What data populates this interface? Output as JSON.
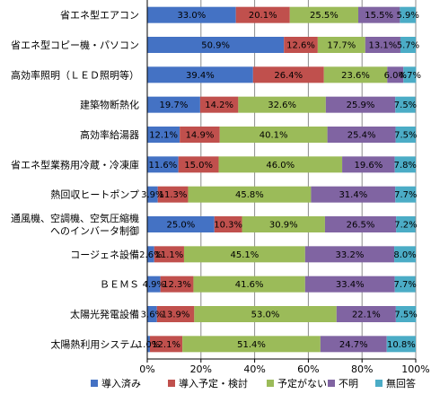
{
  "chart_data": {
    "type": "bar",
    "orientation": "horizontal",
    "stacked": "percent",
    "categories": [
      "省エネ型エアコン",
      "省エネ型コピー機・パソコン",
      "高効率照明（ＬＥＤ照明等）",
      "建築物断熱化",
      "高効率給湯器",
      "省エネ型業務用冷蔵・冷凍庫",
      "熱回収ヒートポンプ",
      [
        "通風機、空調機、空気圧縮機",
        "へのインバータ制御"
      ],
      "コージェネ設備",
      "ＢＥＭＳ",
      "太陽光発電設備",
      "太陽熱利用システム"
    ],
    "series": [
      {
        "name": "導入済み",
        "color": "#4472C4",
        "values": [
          33.0,
          50.9,
          39.4,
          19.7,
          12.1,
          11.6,
          3.9,
          25.0,
          2.6,
          4.9,
          3.6,
          1.0
        ],
        "labels": [
          "33.0%",
          "50.9%",
          "39.4%",
          "19.7%",
          "12.1%",
          "11.6%",
          "3.9%",
          "25.0%",
          "2.6%",
          "4.9%",
          "3.6%",
          "1.0%"
        ]
      },
      {
        "name": "導入予定・検討",
        "color": "#C0504D",
        "values": [
          20.1,
          12.6,
          26.4,
          14.2,
          14.9,
          15.0,
          11.3,
          10.3,
          11.1,
          12.3,
          13.9,
          12.1
        ],
        "labels": [
          "20.1%",
          "12.6%",
          "26.4%",
          "14.2%",
          "14.9%",
          "15.0%",
          "11.3%",
          "10.3%",
          "11.1%",
          "12.3%",
          "13.9%",
          "12.1%"
        ]
      },
      {
        "name": "予定がない",
        "color": "#9BBB59",
        "values": [
          25.5,
          17.7,
          23.6,
          32.6,
          40.1,
          46.0,
          45.8,
          30.9,
          45.1,
          41.6,
          53.0,
          51.4
        ],
        "labels": [
          "25.5%",
          "17.7%",
          "23.6%",
          "32.6%",
          "40.1%",
          "46.0%",
          "45.8%",
          "30.9%",
          "45.1%",
          "41.6%",
          "53.0%",
          "51.4%"
        ]
      },
      {
        "name": "不明",
        "color": "#8064A2",
        "values": [
          15.5,
          13.1,
          6.0,
          25.9,
          25.4,
          19.6,
          31.4,
          26.5,
          33.2,
          33.4,
          22.1,
          24.7
        ],
        "labels": [
          "15.5%",
          "13.1%",
          "6.0%",
          "25.9%",
          "25.4%",
          "19.6%",
          "31.4%",
          "26.5%",
          "33.2%",
          "33.4%",
          "22.1%",
          "24.7%"
        ]
      },
      {
        "name": "無回答",
        "color": "#4BACC6",
        "values": [
          5.9,
          5.7,
          4.7,
          7.5,
          7.5,
          7.8,
          7.7,
          7.2,
          8.0,
          7.7,
          7.5,
          10.8
        ],
        "labels": [
          "5.9%",
          "5.7%",
          "4.7%",
          "7.5%",
          "7.5%",
          "7.8%",
          "7.7%",
          "7.2%",
          "8.0%",
          "7.7%",
          "7.5%",
          "10.8%"
        ]
      }
    ],
    "x_ticks": [
      "0%",
      "20%",
      "40%",
      "60%",
      "80%",
      "100%"
    ],
    "xlim": [
      0,
      100
    ],
    "grid": "vertical",
    "legend_position": "bottom",
    "title": "",
    "xlabel": "",
    "ylabel": ""
  }
}
